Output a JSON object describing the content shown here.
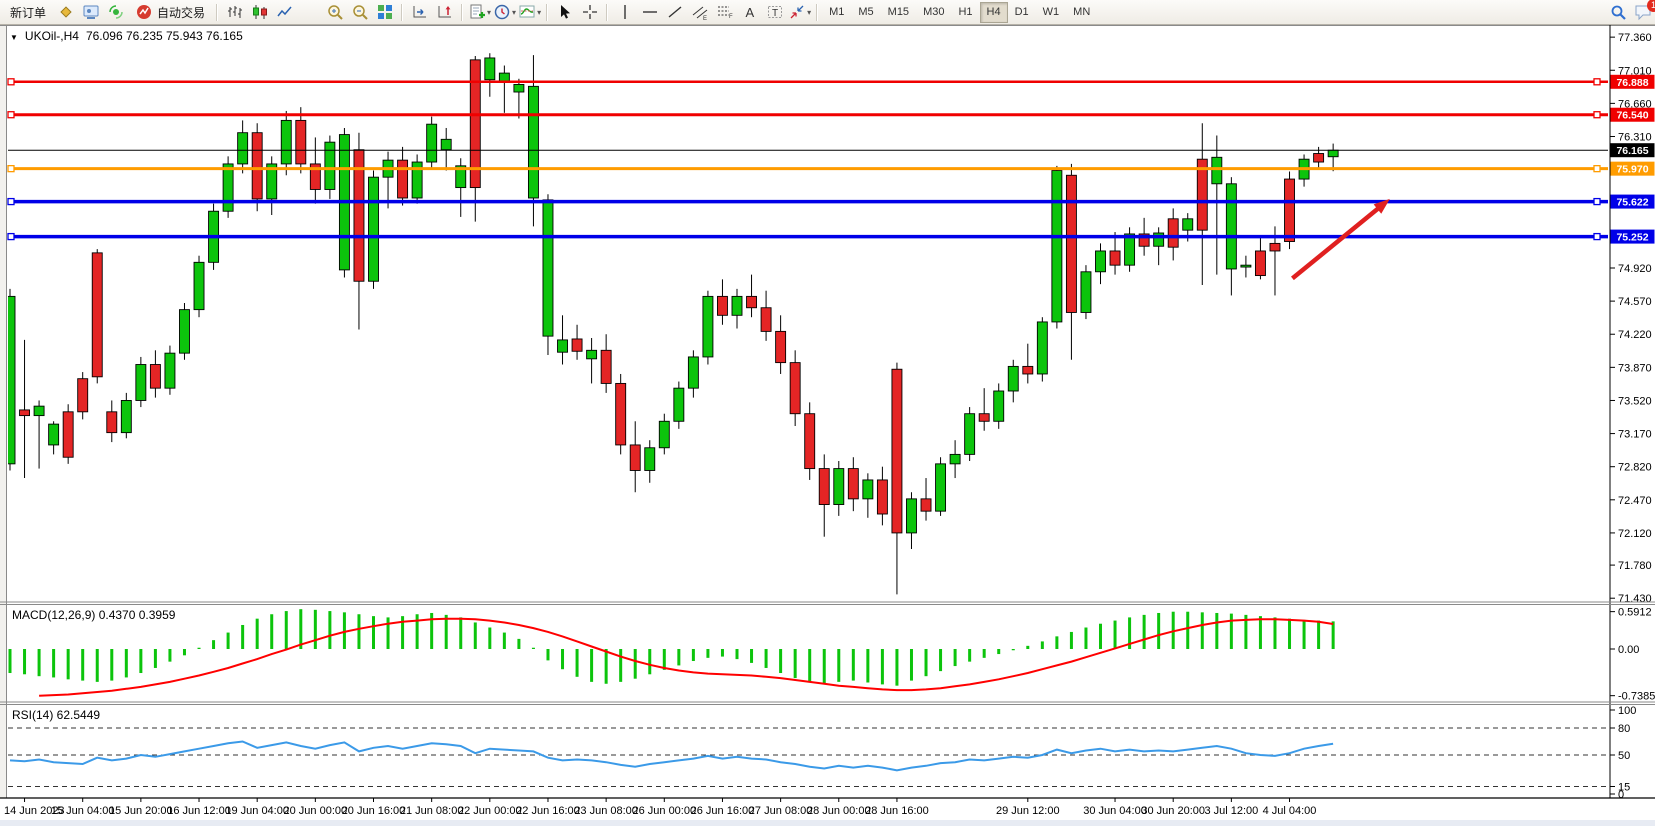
{
  "toolbar": {
    "items": [
      {
        "kind": "btn",
        "name": "new-order-button",
        "label": "新订单"
      },
      {
        "kind": "icon",
        "name": "market-watch-icon"
      },
      {
        "kind": "icon",
        "name": "terminal-icon"
      },
      {
        "kind": "icon",
        "name": "signals-icon"
      },
      {
        "kind": "btn",
        "name": "auto-trading-button",
        "icon": "autotrade-icon",
        "label": "自动交易"
      },
      {
        "kind": "sep"
      },
      {
        "kind": "icon",
        "name": "bar-chart-icon"
      },
      {
        "kind": "icon",
        "name": "candlestick-chart-icon"
      },
      {
        "kind": "icon",
        "name": "line-chart-icon"
      },
      {
        "k极ind": "sep"
      },
      {
        "kind": "icon",
        "name": "zoom-in-icon"
      },
      {
        "kind": "icon",
        "name": "zoom-out-icon"
      },
      {
        "kind": "icon",
        "name": "tile-windows-icon"
      },
      {
        "kind": "sep"
      },
      {
        "kind": "icon",
        "name": "chart-shift-icon"
      },
      {
        "kind": "icon",
        "name": "auto-scroll-icon"
      },
      {
        "kind": "sep"
      },
      {
        "kind": "icon",
        "name": "templates-icon",
        "dd": true
      },
      {
        "kind": "icon",
        "name": "periods-icon",
        "dd": true
      },
      {
        "kind": "icon",
        "name": "indicators-icon",
        "dd": true
      },
      {
        "kind": "sep"
      },
      {
        "kind": "icon",
        "name": "cursor-icon"
      },
      {
        "kind": "icon",
        "name": "crosshair-icon"
      },
      {
        "kind": "sep"
      },
      {
        "kind": "icon",
        "name": "vertical-line-icon"
      },
      {
        "kind": "icon",
        "name": "horizontal-line-icon"
      },
      {
        "kind": "icon",
        "name": "trendline-icon"
      },
      {
        "kind": "icon",
        "name": "equidistant-channel-icon"
      },
      {
        "kind": "icon",
        "name": "fibonacci-icon"
      },
      {
        "kind": "icon",
        "name": "text-icon"
      },
      {
        "kind": "icon",
        "name": "text-label-icon"
      },
      {
        "kind": "icon",
        "name": "arrows-icon",
        "dd": true
      },
      {
        "kind": "sep"
      },
      {
        "kind": "tf",
        "label": "M1"
      },
      {
        "kind": "tf",
        "label": "M5"
      },
      {
        "kind": "tf",
        "label": "M15"
      },
      {
        "kind": "tf",
        "label": "M30"
      },
      {
        "kind": "tf",
        "label": "H1"
      },
      {
        "kind": "tf",
        "label": "H4",
        "active": true
      },
      {
        "kind": "tf",
        "label": "D1"
      },
      {
        "kind": "tf",
        "label": "W1"
      },
      {
        "kind": "tf",
        "label": "MN"
      },
      {
        "kind": "spacer"
      },
      {
        "kind": "icon",
        "name": "search-icon"
      },
      {
        "kind": "icon",
        "name": "chat-icon",
        "badge": "1"
      }
    ]
  },
  "chart": {
    "symbol_title": "UKOil-,H4",
    "ohlc_values": "76.096 76.235 75.943 76.165",
    "axis_ticks": [
      "77.360",
      "77.010",
      "76.660",
      "76.310",
      "74.920",
      "74.570",
      "74.220",
      "73.870",
      "73.520",
      "73.170",
      "72.820",
      "72.470",
      "72.120",
      "71.780",
      "71.430"
    ],
    "price_line": {
      "label": "76.165",
      "price": 76.165,
      "color": "#000000"
    },
    "levels": [
      {
        "label": "76.888",
        "price": 76.888,
        "color": "#f00000",
        "width": 2.5
      },
      {
        "label": "76.540",
        "price": 76.54,
        "color": "#f00000",
        "width": 3
      },
      {
        "label": "75.970",
        "price": 75.97,
        "color": "#ff9c00",
        "width": 3
      },
      {
        "label": "75.622",
        "price": 75.622,
        "color": "#0000e8",
        "width": 3.5
      },
      {
        "label": "75.252",
        "price": 75.252,
        "color": "#0000e8",
        "width": 3.5
      }
    ]
  },
  "macd": {
    "label": "MACD(12,26,9) 0.4370 0.3959",
    "ticks": [
      {
        "v": 0.5912,
        "t": "0.5912"
      },
      {
        "v": 0,
        "t": "0.00"
      },
      {
        "v": -0.7385,
        "t": "-0.7385"
      }
    ]
  },
  "rsi": {
    "label": "RSI(14) 62.5449",
    "ticks": [
      {
        "v": 100,
        "t": "100"
      },
      {
        "v": 80,
        "t": "80"
      },
      {
        "v": 50,
        "t": "50"
      },
      {
        "v": 15,
        "t": "15"
      },
      {
        "v": 0,
        "t": "0"
      }
    ],
    "dashed_levels": [
      80,
      50,
      15
    ]
  },
  "chart_data": {
    "type": "candlestick",
    "symbol": "UKOil-",
    "timeframe": "H4",
    "title": "UKOil-,H4 76.096 76.235 75.943 76.165",
    "price_range": [
      71.43,
      77.36
    ],
    "colors": {
      "up": "#0cc40c",
      "down": "#e42525",
      "wick": "#000000",
      "macd_hist": "#0cc40c",
      "macd_signal": "#ff0000",
      "rsi_line": "#3b9ae8"
    },
    "candles": [
      [
        72.85,
        74.7,
        72.78,
        74.62
      ],
      [
        73.42,
        74.16,
        72.7,
        73.36
      ],
      [
        73.36,
        73.52,
        72.8,
        73.46
      ],
      [
        73.05,
        73.3,
        72.95,
        73.27
      ],
      [
        73.4,
        73.48,
        72.85,
        72.92
      ],
      [
        73.75,
        73.82,
        73.32,
        73.4
      ],
      [
        75.08,
        75.12,
        73.7,
        73.77
      ],
      [
        73.4,
        73.52,
        73.08,
        73.18
      ],
      [
        73.18,
        73.6,
        73.12,
        73.52
      ],
      [
        73.52,
        73.98,
        73.45,
        73.9
      ],
      [
        73.9,
        74.05,
        73.55,
        73.65
      ],
      [
        73.65,
        74.1,
        73.58,
        74.02
      ],
      [
        74.02,
        74.55,
        73.95,
        74.48
      ],
      [
        74.48,
        75.05,
        74.4,
        74.98
      ],
      [
        74.98,
        75.6,
        74.9,
        75.52
      ],
      [
        75.52,
        76.1,
        75.45,
        76.02
      ],
      [
        76.02,
        76.48,
        75.92,
        76.35
      ],
      [
        76.35,
        76.45,
        75.52,
        75.65
      ],
      [
        75.65,
        76.1,
        75.48,
        76.02
      ],
      [
        76.02,
        76.58,
        75.9,
        76.48
      ],
      [
        76.48,
        76.62,
        75.92,
        76.02
      ],
      [
        76.02,
        76.3,
        75.6,
        75.75
      ],
      [
        75.75,
        76.32,
        75.65,
        76.25
      ],
      [
        74.9,
        76.4,
        74.82,
        76.33
      ],
      [
        76.17,
        76.35,
        74.27,
        74.78
      ],
      [
        74.78,
        75.95,
        74.7,
        75.88
      ],
      [
        75.88,
        76.15,
        75.55,
        76.06
      ],
      [
        76.06,
        76.2,
        75.58,
        75.66
      ],
      [
        75.66,
        76.12,
        75.6,
        76.04
      ],
      [
        76.04,
        76.52,
        75.96,
        76.44
      ],
      [
        76.17,
        76.4,
        75.95,
        76.28
      ],
      [
        75.77,
        76.08,
        75.46,
        76.0
      ],
      [
        77.12,
        77.16,
        75.41,
        75.77
      ],
      [
        76.91,
        77.19,
        76.73,
        77.14
      ],
      [
        76.88,
        77.06,
        76.56,
        76.98
      ],
      [
        76.78,
        76.92,
        76.5,
        76.86
      ],
      [
        75.66,
        77.17,
        75.36,
        76.84
      ],
      [
        74.2,
        75.7,
        74.0,
        75.64
      ],
      [
        74.03,
        74.42,
        73.9,
        74.16
      ],
      [
        74.17,
        74.32,
        73.95,
        74.04
      ],
      [
        73.96,
        74.18,
        73.7,
        74.05
      ],
      [
        74.05,
        74.22,
        73.6,
        73.7
      ],
      [
        73.7,
        73.8,
        72.95,
        73.05
      ],
      [
        73.05,
        73.3,
        72.55,
        72.78
      ],
      [
        72.78,
        73.1,
        72.65,
        73.02
      ],
      [
        73.02,
        73.38,
        72.95,
        73.3
      ],
      [
        73.3,
        73.72,
        73.22,
        73.65
      ],
      [
        73.65,
        74.05,
        73.55,
        73.98
      ],
      [
        73.98,
        74.68,
        73.9,
        74.62
      ],
      [
        74.62,
        74.8,
        74.32,
        74.42
      ],
      [
        74.42,
        74.7,
        74.28,
        74.62
      ],
      [
        74.62,
        74.85,
        74.4,
        74.5
      ],
      [
        74.5,
        74.68,
        74.15,
        74.25
      ],
      [
        74.25,
        74.42,
        73.8,
        73.92
      ],
      [
        73.92,
        74.05,
        73.25,
        73.38
      ],
      [
        73.38,
        73.5,
        72.68,
        72.8
      ],
      [
        72.8,
        72.95,
        72.08,
        72.42
      ],
      [
        72.42,
        72.88,
        72.3,
        72.8
      ],
      [
        72.8,
        72.92,
        72.35,
        72.48
      ],
      [
        72.48,
        72.75,
        72.28,
        72.68
      ],
      [
        72.68,
        72.82,
        72.2,
        72.32
      ],
      [
        73.85,
        73.92,
        71.47,
        72.12
      ],
      [
        72.12,
        72.55,
        71.95,
        72.48
      ],
      [
        72.48,
        72.7,
        72.25,
        72.35
      ],
      [
        72.35,
        72.92,
        72.3,
        72.85
      ],
      [
        72.85,
        73.1,
        72.7,
        72.95
      ],
      [
        72.95,
        73.45,
        72.88,
        73.38
      ],
      [
        73.38,
        73.65,
        73.2,
        73.3
      ],
      [
        73.3,
        73.7,
        73.22,
        73.62
      ],
      [
        73.62,
        73.95,
        73.5,
        73.88
      ],
      [
        73.88,
        74.12,
        73.7,
        73.8
      ],
      [
        73.8,
        74.4,
        73.72,
        74.35
      ],
      [
        74.35,
        76.0,
        74.28,
        75.95
      ],
      [
        75.9,
        76.02,
        73.95,
        74.45
      ],
      [
        74.45,
        74.95,
        74.38,
        74.88
      ],
      [
        74.88,
        75.18,
        74.75,
        75.1
      ],
      [
        75.1,
        75.3,
        74.85,
        74.95
      ],
      [
        74.95,
        75.35,
        74.88,
        75.28
      ],
      [
        75.28,
        75.45,
        75.05,
        75.15
      ],
      [
        75.15,
        75.35,
        74.95,
        75.29
      ],
      [
        75.44,
        75.55,
        75.0,
        75.14
      ],
      [
        75.32,
        75.5,
        75.2,
        75.44
      ],
      [
        76.07,
        76.45,
        74.74,
        75.32
      ],
      [
        75.81,
        76.32,
        74.85,
        76.09
      ],
      [
        74.91,
        75.88,
        74.63,
        75.81
      ],
      [
        74.93,
        75.05,
        74.82,
        74.95
      ],
      [
        75.1,
        75.24,
        74.8,
        74.84
      ],
      [
        75.18,
        75.36,
        74.63,
        75.1
      ],
      [
        75.86,
        75.94,
        75.12,
        75.2
      ],
      [
        75.86,
        76.12,
        75.78,
        76.07
      ],
      [
        76.13,
        76.2,
        75.96,
        76.04
      ],
      [
        76.096,
        76.235,
        75.943,
        76.165
      ]
    ],
    "time_labels": [
      [
        1,
        "14 Jun 2023"
      ],
      [
        5,
        "15 Jun 04:00"
      ],
      [
        9,
        "15 Jun 20:00"
      ],
      [
        13,
        "16 Jun 12:00"
      ],
      [
        17,
        "19 Jun 04:00"
      ],
      [
        21,
        "20 Jun 00:00"
      ],
      [
        25,
        "20 Jun 16:00"
      ],
      [
        29,
        "21 Jun 08:00"
      ],
      [
        33,
        "22 Jun 00:00"
      ],
      [
        37,
        "22 Jun 16:00"
      ],
      [
        41,
        "23 Jun 08:00"
      ],
      [
        45,
        "26 Jun 00:00"
      ],
      [
        49,
        "26 Jun 16:00"
      ],
      [
        53,
        "27 Jun 08:00"
      ],
      [
        57,
        "28 Jun 00:00"
      ],
      [
        61,
        "28 Jun 16:00"
      ],
      [
        70,
        "29 Jun 12:00"
      ],
      [
        76,
        "30 Jun 04:00"
      ],
      [
        80,
        "30 Jun 20:00"
      ],
      [
        84,
        "3 Jul 12:00"
      ],
      [
        88,
        "4 Jul 04:00"
      ]
    ],
    "macd_hist": [
      -0.38,
      -0.4,
      -0.43,
      -0.45,
      -0.48,
      -0.5,
      -0.52,
      -0.5,
      -0.45,
      -0.38,
      -0.3,
      -0.2,
      -0.1,
      0.02,
      0.14,
      0.26,
      0.38,
      0.48,
      0.55,
      0.6,
      0.63,
      0.62,
      0.6,
      0.58,
      0.55,
      0.52,
      0.5,
      0.52,
      0.55,
      0.57,
      0.54,
      0.5,
      0.42,
      0.34,
      0.26,
      0.16,
      0.02,
      -0.18,
      -0.32,
      -0.44,
      -0.52,
      -0.55,
      -0.52,
      -0.47,
      -0.4,
      -0.33,
      -0.26,
      -0.19,
      -0.14,
      -0.12,
      -0.16,
      -0.22,
      -0.3,
      -0.38,
      -0.46,
      -0.52,
      -0.56,
      -0.52,
      -0.5,
      -0.53,
      -0.56,
      -0.58,
      -0.5,
      -0.43,
      -0.35,
      -0.27,
      -0.2,
      -0.14,
      -0.08,
      -0.02,
      0.05,
      0.12,
      0.2,
      0.27,
      0.34,
      0.4,
      0.45,
      0.5,
      0.54,
      0.57,
      0.59,
      0.59,
      0.58,
      0.57,
      0.56,
      0.54,
      0.52,
      0.5,
      0.48,
      0.46,
      0.45,
      0.437
    ],
    "macd_signal": [
      null,
      null,
      -0.74,
      -0.73,
      -0.72,
      -0.7,
      -0.68,
      -0.66,
      -0.63,
      -0.6,
      -0.56,
      -0.52,
      -0.47,
      -0.42,
      -0.36,
      -0.3,
      -0.23,
      -0.16,
      -0.08,
      -0.01,
      0.07,
      0.14,
      0.21,
      0.27,
      0.32,
      0.36,
      0.4,
      0.43,
      0.45,
      0.47,
      0.48,
      0.48,
      0.47,
      0.45,
      0.42,
      0.38,
      0.33,
      0.27,
      0.2,
      0.12,
      0.04,
      -0.04,
      -0.12,
      -0.19,
      -0.25,
      -0.3,
      -0.34,
      -0.37,
      -0.39,
      -0.4,
      -0.41,
      -0.42,
      -0.44,
      -0.46,
      -0.49,
      -0.52,
      -0.55,
      -0.58,
      -0.6,
      -0.62,
      -0.64,
      -0.65,
      -0.65,
      -0.64,
      -0.62,
      -0.59,
      -0.56,
      -0.52,
      -0.48,
      -0.43,
      -0.38,
      -0.32,
      -0.26,
      -0.2,
      -0.13,
      -0.06,
      0.01,
      0.08,
      0.15,
      0.22,
      0.28,
      0.33,
      0.38,
      0.42,
      0.45,
      0.46,
      0.47,
      0.47,
      0.46,
      0.45,
      0.43,
      0.3959
    ],
    "rsi_values": [
      44,
      43,
      45,
      42,
      41,
      40,
      47,
      44,
      46,
      50,
      48,
      51,
      54,
      57,
      60,
      63,
      65,
      58,
      61,
      64,
      60,
      57,
      61,
      64,
      54,
      58,
      60,
      57,
      60,
      63,
      62,
      60,
      52,
      57,
      56,
      55,
      54,
      47,
      44,
      45,
      44,
      42,
      39,
      37,
      40,
      42,
      44,
      46,
      49,
      46,
      48,
      46,
      45,
      42,
      40,
      37,
      35,
      38,
      36,
      38,
      36,
      33,
      36,
      38,
      41,
      42,
      45,
      44,
      46,
      48,
      47,
      50,
      56,
      52,
      55,
      57,
      54,
      56,
      54,
      55,
      54,
      56,
      58,
      60,
      57,
      52,
      50,
      49,
      52,
      57,
      60,
      62.5
    ],
    "annotations": {
      "arrow": {
        "from_i": 88.2,
        "from_p": 74.81,
        "to_i": 94.9,
        "to_p": 75.65,
        "color": "#e02020"
      }
    }
  }
}
